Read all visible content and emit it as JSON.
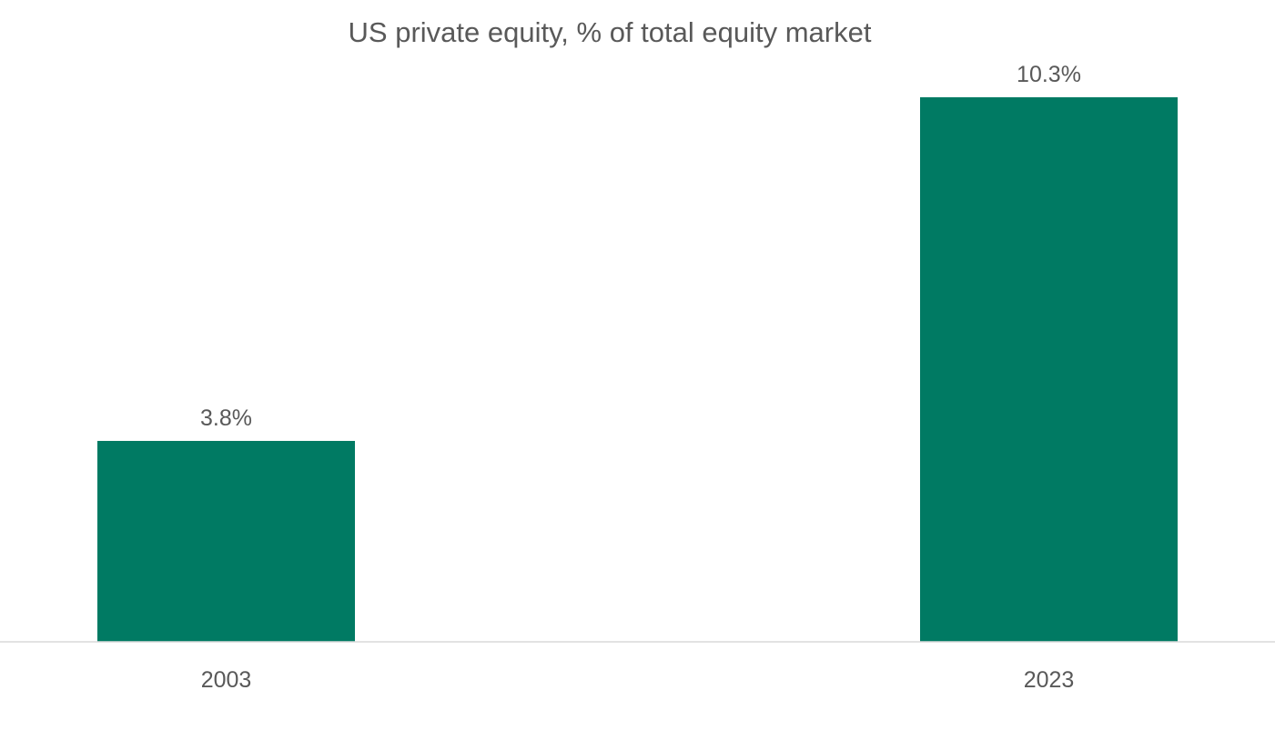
{
  "chart_data": {
    "type": "bar",
    "title": "US private equity, % of total equity market",
    "categories": [
      "2003",
      "2023"
    ],
    "values": [
      3.8,
      10.3
    ],
    "data_labels": [
      "3.8%",
      "10.3%"
    ],
    "xlabel": "",
    "ylabel": "",
    "ylim": [
      0,
      10.3
    ],
    "grid": false,
    "legend": "none",
    "colors": {
      "bar": "#007a63",
      "text": "#595959",
      "axis": "#d9d9d9"
    }
  }
}
